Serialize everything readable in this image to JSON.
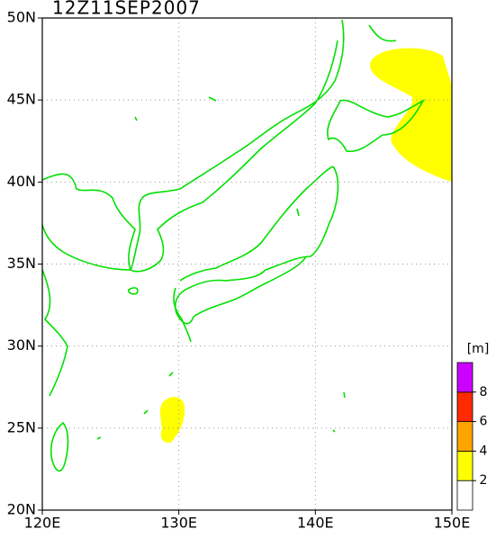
{
  "map": {
    "title": "12Z11SEP2007",
    "xlim": [
      120,
      150
    ],
    "ylim": [
      20,
      50
    ],
    "xticks": [
      {
        "value": 120,
        "label": "120E"
      },
      {
        "value": 130,
        "label": "130E"
      },
      {
        "value": 140,
        "label": "140E"
      },
      {
        "value": 150,
        "label": "150E"
      }
    ],
    "yticks": [
      {
        "value": 20,
        "label": "20N"
      },
      {
        "value": 25,
        "label": "25N"
      },
      {
        "value": 30,
        "label": "30N"
      },
      {
        "value": 35,
        "label": "35N"
      },
      {
        "value": 40,
        "label": "40N"
      },
      {
        "value": 45,
        "label": "45N"
      },
      {
        "value": 50,
        "label": "50N"
      }
    ],
    "grid": true,
    "coast_color": "#00e000"
  },
  "colorbar": {
    "unit": "[m]",
    "levels": [
      2,
      4,
      6,
      8
    ],
    "colors": [
      "#ffffff",
      "#ffff00",
      "#ffa500",
      "#ff2a00",
      "#cc00ff"
    ]
  }
}
